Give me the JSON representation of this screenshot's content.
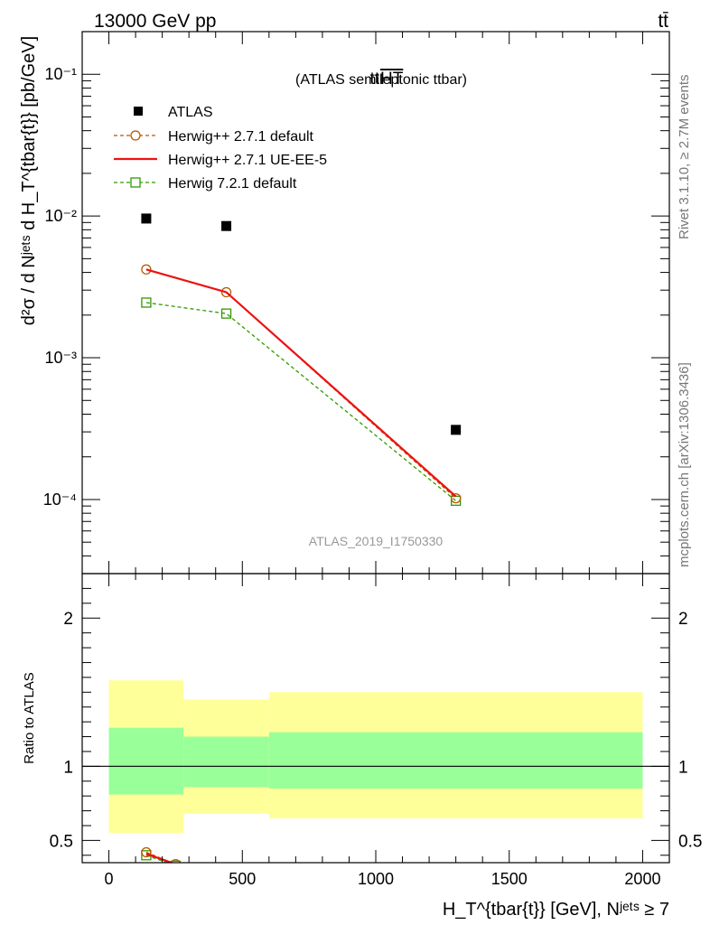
{
  "header": {
    "left": "13000 GeV pp",
    "right": "tt̄"
  },
  "side_labels": {
    "rivet": "Rivet 3.1.10, ≥ 2.7M events",
    "mcplots": "mcplots.cern.ch [arXiv:1306.3436]"
  },
  "watermark": "ATLAS_2019_I1750330",
  "colors": {
    "atlas": "#000000",
    "herwigpp_default": "#b35900",
    "herwigpp_ueee5": "#ee1111",
    "herwig72": "#339900",
    "band_inner": "#99ff99",
    "band_outer": "#ffff99"
  },
  "chart_data": [
    {
      "type": "line",
      "title_main": "tt",
      "title_over": "HT",
      "title_suffix": "(ATLAS semileptonic ttbar)",
      "ylabel": "d²σ / d Nʲᵉᵗˢ d H_T^{tbar{t}} [pb/GeV]",
      "yscale": "log",
      "xlim": [
        -100,
        2100
      ],
      "ylim": [
        3e-05,
        0.2
      ],
      "y_tick_labels": [
        "10⁻⁴",
        "10⁻³",
        "10⁻²",
        "10⁻¹"
      ],
      "legend_placement": "top-left",
      "x_tick_labels": [],
      "series": [
        {
          "name": "ATLAS",
          "style": "marker-square",
          "x": [
            140,
            440,
            1300
          ],
          "y": [
            0.0096,
            0.0085,
            0.00031
          ]
        },
        {
          "name": "Herwig++ 2.7.1 default",
          "style": "dashed-circle",
          "x": [
            140,
            440,
            1300
          ],
          "y": [
            0.0042,
            0.0029,
            0.000102
          ]
        },
        {
          "name": "Herwig++ 2.7.1 UE-EE-5",
          "style": "solid",
          "x": [
            140,
            440,
            1300
          ],
          "y": [
            0.0042,
            0.0029,
            0.000105
          ]
        },
        {
          "name": "Herwig 7.2.1 default",
          "style": "dashed-square",
          "x": [
            140,
            440,
            1300
          ],
          "y": [
            0.00245,
            0.00205,
            9.8e-05
          ]
        }
      ]
    },
    {
      "type": "line",
      "ylabel": "Ratio to ATLAS",
      "xlabel": "H_T^{tbar{t}} [GeV], Nʲᵉᵗˢ ≥ 7",
      "xlim": [
        -100,
        2100
      ],
      "ylim": [
        0.35,
        2.3
      ],
      "y_tick_labels": [
        "0.5",
        "1",
        "2"
      ],
      "x_tick_labels": [
        "0",
        "500",
        "1000",
        "1500",
        "2000"
      ],
      "bands": [
        {
          "x": [
            0,
            280
          ],
          "inner": [
            0.81,
            1.26
          ],
          "outer": [
            0.55,
            1.58
          ]
        },
        {
          "x": [
            280,
            600
          ],
          "inner": [
            0.86,
            1.2
          ],
          "outer": [
            0.68,
            1.45
          ]
        },
        {
          "x": [
            600,
            2000
          ],
          "inner": [
            0.85,
            1.23
          ],
          "outer": [
            0.65,
            1.5
          ]
        }
      ],
      "series": [
        {
          "name": "Herwig++ 2.7.1 default",
          "style": "dashed-circle",
          "x": [
            140,
            250
          ],
          "y": [
            0.42,
            0.34
          ]
        },
        {
          "name": "Herwig++ 2.7.1 UE-EE-5",
          "style": "solid",
          "x": [
            140,
            250
          ],
          "y": [
            0.41,
            0.34
          ]
        },
        {
          "name": "Herwig 7.2.1 default",
          "style": "dashed-square",
          "x": [
            140,
            250
          ],
          "y": [
            0.4,
            0.33
          ]
        }
      ]
    }
  ]
}
